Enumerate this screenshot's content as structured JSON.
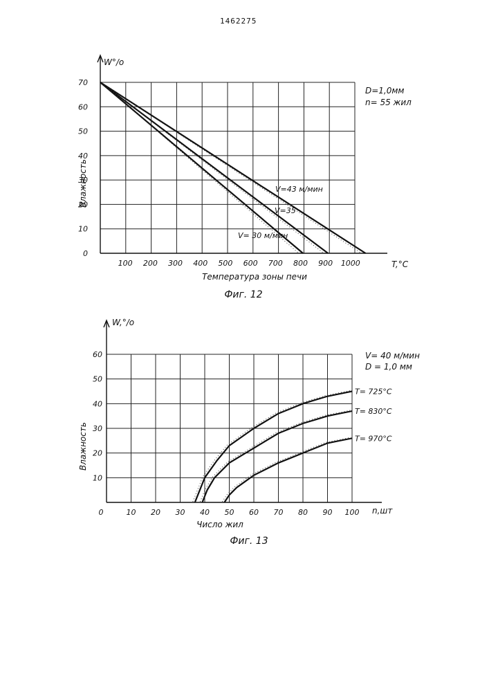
{
  "document_number": "1462275",
  "chart_data": [
    {
      "type": "line",
      "caption": "Фиг. 12",
      "ylabel_top": "W°/o",
      "ylabel": "Влажность",
      "xlabel": "Температура зоны печи",
      "xunit": "T,°C",
      "xlim": [
        0,
        1100
      ],
      "ylim": [
        0,
        70
      ],
      "x_ticks": [
        "100",
        "200",
        "300",
        "400",
        "500",
        "600",
        "700",
        "800",
        "900",
        "1000"
      ],
      "y_ticks": [
        "0",
        "10",
        "20",
        "30",
        "40",
        "50",
        "60",
        "70"
      ],
      "params": [
        "D=1,0мм",
        "n= 55 жил"
      ],
      "series": [
        {
          "name": "V=43 м/мин",
          "points": [
            [
              0,
              70
            ],
            [
              1060,
              0
            ]
          ]
        },
        {
          "name": "V=35",
          "points": [
            [
              0,
              70
            ],
            [
              910,
              0
            ]
          ]
        },
        {
          "name": "V= 30 м/мин",
          "points": [
            [
              0,
              70
            ],
            [
              810,
              0
            ]
          ]
        }
      ]
    },
    {
      "type": "line",
      "caption": "Фиг. 13",
      "ylabel_top": "W,°/o",
      "ylabel": "Влажность",
      "xlabel": "Число жил",
      "xunit": "n,шт",
      "xlim": [
        0,
        100
      ],
      "ylim": [
        0,
        60
      ],
      "x_ticks": [
        "0",
        "10",
        "20",
        "30",
        "40",
        "50",
        "60",
        "70",
        "80",
        "90",
        "100"
      ],
      "y_ticks": [
        "10",
        "20",
        "30",
        "40",
        "50",
        "60"
      ],
      "params": [
        "V= 40 м/мин",
        "D = 1,0 мм"
      ],
      "series": [
        {
          "name": "T= 725°C",
          "points": [
            [
              36,
              0
            ],
            [
              38,
              5
            ],
            [
              40,
              10
            ],
            [
              45,
              17
            ],
            [
              50,
              23
            ],
            [
              60,
              30
            ],
            [
              70,
              36
            ],
            [
              80,
              40
            ],
            [
              90,
              43
            ],
            [
              100,
              45
            ]
          ]
        },
        {
          "name": "T= 830°C",
          "points": [
            [
              39,
              0
            ],
            [
              41,
              5
            ],
            [
              44,
              10
            ],
            [
              50,
              16
            ],
            [
              60,
              22
            ],
            [
              70,
              28
            ],
            [
              80,
              32
            ],
            [
              90,
              35
            ],
            [
              100,
              37
            ]
          ]
        },
        {
          "name": "T= 970°C",
          "points": [
            [
              48,
              0
            ],
            [
              50,
              3
            ],
            [
              53,
              6
            ],
            [
              60,
              11
            ],
            [
              70,
              16
            ],
            [
              80,
              20
            ],
            [
              90,
              24
            ],
            [
              100,
              26
            ]
          ]
        }
      ]
    }
  ]
}
